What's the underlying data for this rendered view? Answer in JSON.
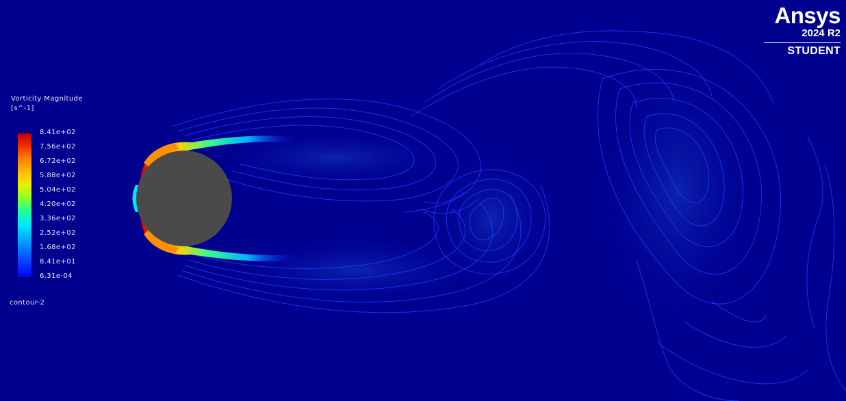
{
  "legend": {
    "title": "Vorticity Magnitude",
    "units": "[s^-1]",
    "ticks": [
      "8.41e+02",
      "7.56e+02",
      "6.72e+02",
      "5.88e+02",
      "5.04e+02",
      "4.20e+02",
      "3.36e+02",
      "2.52e+02",
      "1.68e+02",
      "8.41e+01",
      "6.31e-04"
    ],
    "colormap": [
      "#0000ff",
      "#00a0ff",
      "#00e6ff",
      "#20ff9a",
      "#8cff28",
      "#e8f000",
      "#ffbe00",
      "#ff7a00",
      "#f02a00",
      "#c00000"
    ]
  },
  "contour_name": "contour-2",
  "brand": {
    "name": "Ansys",
    "version": "2024 R2",
    "edition": "STUDENT"
  },
  "colors": {
    "background": "#00008f",
    "cylinder": "#4a4a4a",
    "contour_line": "#1a3cff"
  }
}
